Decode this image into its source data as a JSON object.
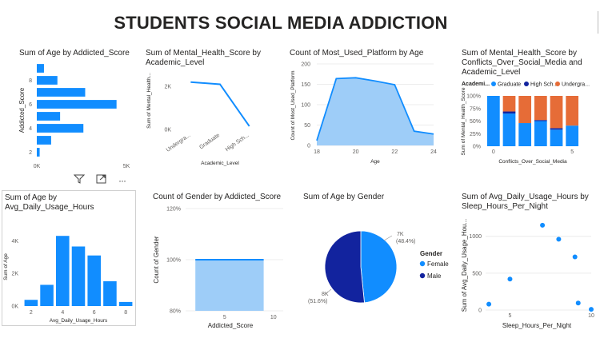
{
  "report": {
    "title": "STUDENTS SOCIAL MEDIA ADDICTION"
  },
  "visual_controls": {
    "filter": "filter-icon",
    "focus": "focus-mode-icon",
    "more": "···"
  },
  "colors": {
    "blue": "#118dff",
    "navy": "#12239e",
    "orange": "#e66c37",
    "light_blue": "#9ecdf8"
  },
  "chart_data": [
    {
      "id": "age_by_addicted",
      "type": "bar",
      "orientation": "horizontal",
      "title": "Sum of Age by Addicted_Score",
      "ylabel": "Addicted_Score",
      "categories": [
        2,
        3,
        4,
        5,
        6,
        7,
        8,
        9
      ],
      "values": [
        160,
        800,
        2600,
        1300,
        4450,
        2700,
        1150,
        400
      ],
      "xlim": [
        0,
        5000
      ],
      "xticks": [
        "0K",
        "5K"
      ],
      "yticks": [
        "2",
        "4",
        "6",
        "8"
      ]
    },
    {
      "id": "mental_by_academic",
      "type": "line",
      "title": "Sum of Mental_Health_Score by Academic_Level",
      "xlabel": "Academic_Level",
      "ylabel": "Sum of Mental_Health...",
      "categories": [
        "Undergra...",
        "Graduate",
        "High Sch..."
      ],
      "values": [
        2200,
        2100,
        150
      ],
      "ylim": [
        0,
        2600
      ],
      "yticks": [
        "0K",
        "2K"
      ]
    },
    {
      "id": "platform_by_age",
      "type": "area",
      "title": "Count of Most_Used_Platform by Age",
      "xlabel": "Age",
      "ylabel": "Count of Most_Used_Platform",
      "x": [
        18,
        19,
        20,
        21,
        22,
        23,
        24
      ],
      "values": [
        12,
        164,
        166,
        158,
        149,
        35,
        28
      ],
      "ylim": [
        0,
        200
      ],
      "yticks": [
        "0",
        "50",
        "100",
        "150",
        "200"
      ],
      "xticks": [
        "18",
        "20",
        "22",
        "24"
      ]
    },
    {
      "id": "mental_by_conflicts_academic",
      "type": "bar",
      "stacked": "percent",
      "title": "Sum of Mental_Health_Score by Conflicts_Over_Social_Media and Academic_Level",
      "xlabel": "Conflicts_Over_Social_Media",
      "ylabel": "Sum of Mental_Health_Score",
      "legend_title": "Academi...",
      "legend": [
        "Graduate",
        "High Sch...",
        "Undergra..."
      ],
      "categories": [
        0,
        1,
        2,
        3,
        4,
        5
      ],
      "series": [
        {
          "name": "Graduate",
          "values": [
            100,
            65,
            46,
            50,
            33,
            41
          ]
        },
        {
          "name": "High Sch...",
          "values": [
            0,
            4,
            0,
            2,
            3,
            0
          ]
        },
        {
          "name": "Undergra...",
          "values": [
            0,
            31,
            54,
            48,
            64,
            59
          ]
        }
      ],
      "yticks": [
        "0%",
        "25%",
        "50%",
        "75%",
        "100%"
      ],
      "xticks": [
        "0",
        "5"
      ]
    },
    {
      "id": "age_by_usage",
      "type": "bar",
      "title": "Sum of Age by Avg_Daily_Usage_Hours",
      "xlabel": "Avg_Daily_Usage_Hours",
      "ylabel": "Sum of Age",
      "x": [
        2,
        3,
        4,
        5,
        6,
        7,
        8
      ],
      "values": [
        380,
        1300,
        4300,
        3650,
        3100,
        1520,
        250
      ],
      "ylim": [
        0,
        4800
      ],
      "yticks": [
        "0K",
        "2K",
        "4K"
      ],
      "xticks": [
        "2",
        "4",
        "6",
        "8"
      ]
    },
    {
      "id": "gender_by_addicted",
      "type": "area",
      "title": "Count of Gender by Addicted_Score",
      "xlabel": "Addicted_Score",
      "ylabel": "Count of Gender",
      "x": [
        2,
        9
      ],
      "values": [
        100,
        100
      ],
      "ylim": [
        80,
        120
      ],
      "yticks": [
        "80%",
        "100%",
        "120%"
      ],
      "xticks": [
        "5",
        "10"
      ]
    },
    {
      "id": "age_by_gender",
      "type": "pie",
      "title": "Sum of Age by Gender",
      "legend_title": "Gender",
      "labels": [
        "Female",
        "Male"
      ],
      "values": [
        48.4,
        51.6
      ],
      "data_labels": [
        {
          "value": "7K",
          "pct": "(48.4%)"
        },
        {
          "value": "8K",
          "pct": "(51.6%)"
        }
      ]
    },
    {
      "id": "usage_by_sleep",
      "type": "scatter",
      "title": "Sum of Avg_Daily_Usage_Hours by Sleep_Hours_Per_Night",
      "xlabel": "Sleep_Hours_Per_Night",
      "ylabel": "Sum of Avg_Daily_Usage_Hou...",
      "points": [
        [
          3.7,
          80
        ],
        [
          5.0,
          420
        ],
        [
          7.0,
          1150
        ],
        [
          8.0,
          960
        ],
        [
          9.0,
          720
        ],
        [
          9.2,
          95
        ],
        [
          10.0,
          10
        ]
      ],
      "xlim": [
        3.5,
        10
      ],
      "ylim": [
        0,
        1300
      ],
      "yticks": [
        "0",
        "500",
        "1000"
      ],
      "xticks": [
        "5",
        "10"
      ]
    }
  ]
}
